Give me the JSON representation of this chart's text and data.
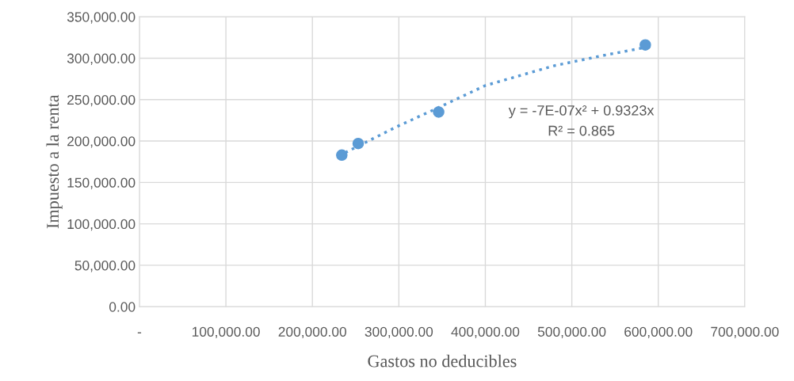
{
  "chart_data": {
    "type": "scatter",
    "xlabel": "Gastos no deducibles",
    "ylabel": "Impuesto a la renta",
    "series": [
      {
        "color": "#5b9bd5",
        "marker": "circle",
        "x": [
          234000,
          253000,
          346000,
          585000
        ],
        "values": [
          183000,
          197000,
          235000,
          316000
        ]
      },
      {
        "type": "line",
        "color": "#5b9bd5",
        "marker": "none",
        "line_style": "dotted",
        "x": [
          238000,
          297000,
          343000,
          400000,
          480000,
          535000,
          585000
        ],
        "values": [
          186000,
          217000,
          239000,
          267000,
          291000,
          303000,
          313000
        ]
      }
    ],
    "annotations": [
      "y = -7E-07x² + 0.9323x",
      "R² = 0.865"
    ],
    "xlim": [
      0,
      700000
    ],
    "xticks": [
      {
        "value": 0,
        "label": "-"
      },
      {
        "value": 100000,
        "label": "100,000.00"
      },
      {
        "value": 200000,
        "label": "200,000.00"
      },
      {
        "value": 300000,
        "label": "300,000.00"
      },
      {
        "value": 400000,
        "label": "400,000.00"
      },
      {
        "value": 500000,
        "label": "500,000.00"
      },
      {
        "value": 600000,
        "label": "600,000.00"
      },
      {
        "value": 700000,
        "label": "700,000.00"
      }
    ],
    "ylim": [
      0,
      350000
    ],
    "yticks": [
      {
        "value": 0,
        "label": "0.00"
      },
      {
        "value": 50000,
        "label": "50,000.00"
      },
      {
        "value": 100000,
        "label": "100,000.00"
      },
      {
        "value": 150000,
        "label": "150,000.00"
      },
      {
        "value": 200000,
        "label": "200,000.00"
      },
      {
        "value": 250000,
        "label": "250,000.00"
      },
      {
        "value": 300000,
        "label": "300,000.00"
      },
      {
        "value": 350000,
        "label": "350,000.00"
      }
    ],
    "grid": true,
    "legend": false
  }
}
